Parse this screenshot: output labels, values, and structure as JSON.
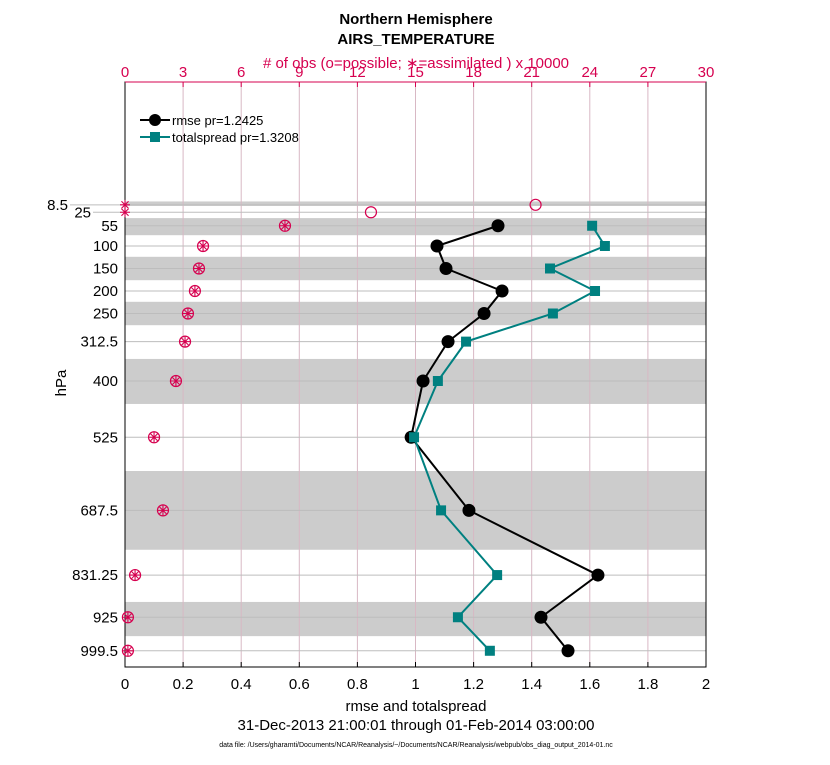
{
  "chart_data": {
    "type": "line",
    "title": "Northern Hemisphere",
    "subtitle": "AIRS_TEMPERATURE",
    "top_xlabel": "# of obs (o=possible; ∗=assimilated ) x 10000",
    "xlabel": "rmse and totalspread",
    "ylabel": "hPa",
    "date_range": "31-Dec-2013 21:00:01 through 01-Feb-2014 03:00:00",
    "footnote": "data file: /Users/gharamti/Documents/NCAR/Reanalysis/~/Documents/NCAR/Reanalysis/webpub/obs_diag_output_2014-01.nc",
    "xlim": [
      0,
      2
    ],
    "xticks": [
      "0",
      "0.2",
      "0.4",
      "0.6",
      "0.8",
      "1",
      "1.2",
      "1.4",
      "1.6",
      "1.8",
      "2"
    ],
    "top_xlim": [
      0,
      30
    ],
    "top_xticks": [
      "0",
      "3",
      "6",
      "9",
      "12",
      "15",
      "18",
      "21",
      "24",
      "27",
      "30"
    ],
    "ylim": [
      -224,
      1035
    ],
    "levels": [
      8.5,
      25,
      55,
      100,
      150,
      200,
      250,
      312.5,
      400,
      525,
      687.5,
      831.25,
      925,
      999.5
    ],
    "level_labels": [
      "8.5",
      "25",
      "55",
      "100",
      "150",
      "200",
      "250",
      "312.5",
      "400",
      "525",
      "687.5",
      "831.25",
      "925",
      "999.5"
    ],
    "shaded_layers_hPa": [
      [
        1,
        11
      ],
      [
        38,
        76
      ],
      [
        124,
        176
      ],
      [
        224,
        276
      ],
      [
        351,
        451
      ],
      [
        600,
        775
      ],
      [
        891,
        967
      ]
    ],
    "series": [
      {
        "name": "rmse pr=1.2425",
        "color": "#000000",
        "marker": "circle",
        "values": [
          null,
          null,
          1.284,
          1.074,
          1.105,
          1.298,
          1.236,
          1.112,
          1.026,
          0.985,
          1.184,
          1.628,
          1.432,
          1.525
        ]
      },
      {
        "name": "totalspread pr=1.3208",
        "color": "#008080",
        "marker": "square",
        "values": [
          null,
          null,
          1.608,
          1.652,
          1.463,
          1.618,
          1.473,
          1.174,
          1.077,
          0.995,
          1.088,
          1.281,
          1.146,
          1.256
        ]
      }
    ],
    "obs_possible": [
      21.2,
      12.7,
      8.26,
      4.03,
      3.82,
      3.61,
      3.25,
      3.1,
      2.63,
      1.5,
      1.96,
      0.52,
      0.15,
      0.15
    ],
    "obs_assimilated": [
      0,
      0,
      8.26,
      4.03,
      3.82,
      3.61,
      3.25,
      3.1,
      2.63,
      1.5,
      1.96,
      0.52,
      0.15,
      0.15
    ],
    "obs_color": "#d6004f",
    "legend_position": "top-left"
  }
}
